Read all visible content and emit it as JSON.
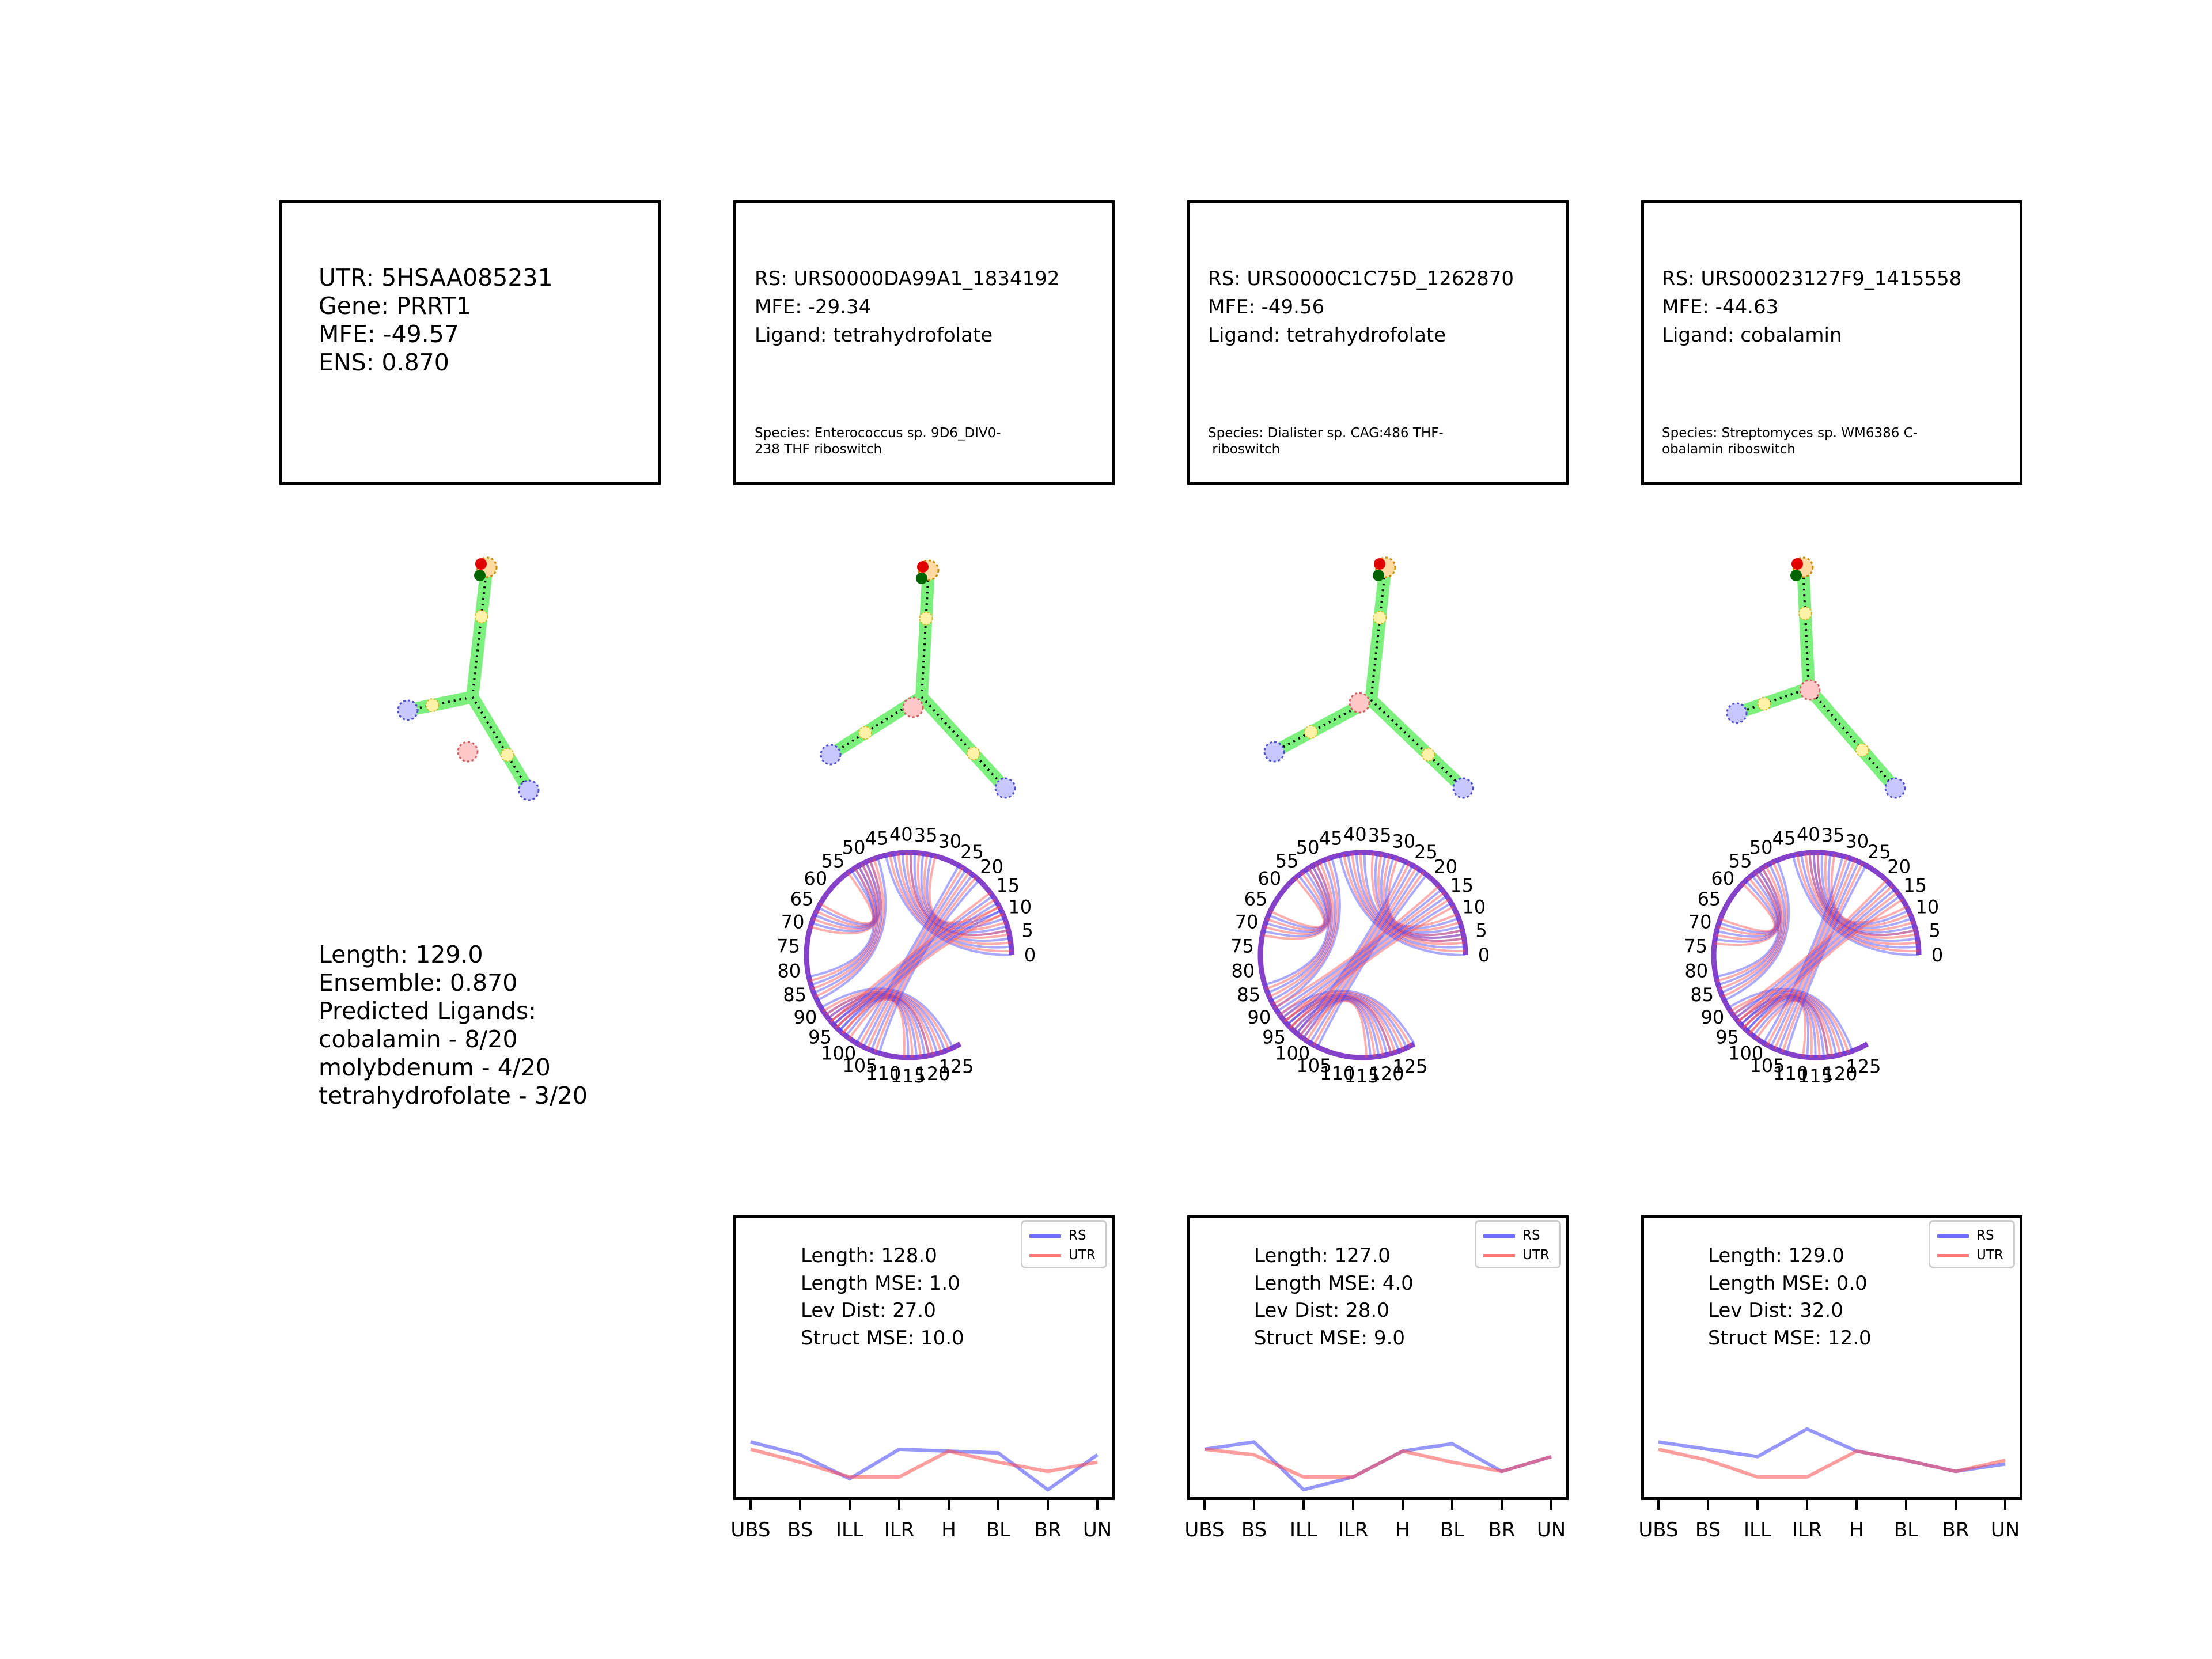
{
  "colors": {
    "rs": "#4040ff",
    "utr": "#ff4a4a",
    "stem": "#7cf07c",
    "hairpin": "#8080ff"
  },
  "utr_panel": {
    "utr": "UTR: 5HSAA085231",
    "gene": "Gene: PRRT1",
    "mfe": "MFE: -49.57",
    "ens": "ENS: 0.870"
  },
  "summary": {
    "length": "Length: 129.0",
    "ensemble": "Ensemble: 0.870",
    "predicted": "Predicted Ligands:",
    "ligands": [
      "cobalamin - 8/20",
      "molybdenum - 4/20",
      "tetrahydrofolate - 3/20"
    ]
  },
  "riboswitches": [
    {
      "rs": "RS: URS0000DA99A1_1834192",
      "mfe": "MFE: -29.34",
      "ligand": "Ligand: tetrahydrofolate",
      "species1": "Species: Enterococcus sp. 9D6_DIV0-",
      "species2": "238 THF riboswitch",
      "length": "Length: 128.0",
      "length_mse": "Length MSE: 1.0",
      "lev": "Lev Dist: 27.0",
      "struct": "Struct MSE: 10.0"
    },
    {
      "rs": "RS: URS0000C1C75D_1262870",
      "mfe": "MFE: -49.56",
      "ligand": "Ligand: tetrahydrofolate",
      "species1": "Species: Dialister sp. CAG:486 THF-",
      "species2": " riboswitch",
      "length": "Length: 127.0",
      "length_mse": "Length MSE: 4.0",
      "lev": "Lev Dist: 28.0",
      "struct": "Struct MSE: 9.0"
    },
    {
      "rs": "RS: URS00023127F9_1415558",
      "mfe": "MFE: -44.63",
      "ligand": "Ligand: cobalamin",
      "species1": "Species: Streptomyces sp. WM6386 C-",
      "species2": "obalamin riboswitch",
      "length": "Length: 129.0",
      "length_mse": "Length MSE: 0.0",
      "lev": "Lev Dist: 32.0",
      "struct": "Struct MSE: 12.0"
    }
  ],
  "legend": {
    "rs": "RS",
    "utr": "UTR"
  },
  "arc_ticks": [
    "0",
    "5",
    "10",
    "15",
    "20",
    "25",
    "30",
    "35",
    "40",
    "45",
    "50",
    "55",
    "60",
    "65",
    "70",
    "75",
    "80",
    "85",
    "90",
    "95",
    "100",
    "105",
    "110",
    "115",
    "120",
    "125"
  ],
  "chart_data": [
    {
      "type": "line",
      "categories": [
        "UBS",
        "BS",
        "ILL",
        "ILR",
        "H",
        "BL",
        "BR",
        "UN"
      ],
      "ylim": [
        0,
        10
      ],
      "series": [
        {
          "name": "RS",
          "values": [
            3.0,
            2.3,
            1.0,
            2.6,
            2.5,
            2.4,
            0.4,
            2.3
          ]
        },
        {
          "name": "UTR",
          "values": [
            2.6,
            1.9,
            1.1,
            1.1,
            2.5,
            1.9,
            1.4,
            1.9
          ]
        }
      ]
    },
    {
      "type": "line",
      "categories": [
        "UBS",
        "BS",
        "ILL",
        "ILR",
        "H",
        "BL",
        "BR",
        "UN"
      ],
      "ylim": [
        0,
        10
      ],
      "series": [
        {
          "name": "RS",
          "values": [
            2.6,
            3.0,
            0.4,
            1.1,
            2.5,
            2.9,
            1.4,
            2.2
          ]
        },
        {
          "name": "UTR",
          "values": [
            2.6,
            2.3,
            1.1,
            1.1,
            2.5,
            1.9,
            1.4,
            2.2
          ]
        }
      ]
    },
    {
      "type": "line",
      "categories": [
        "UBS",
        "BS",
        "ILL",
        "ILR",
        "H",
        "BL",
        "BR",
        "UN"
      ],
      "ylim": [
        0,
        10
      ],
      "series": [
        {
          "name": "RS",
          "values": [
            3.0,
            2.6,
            2.2,
            3.7,
            2.5,
            2.0,
            1.4,
            1.8
          ]
        },
        {
          "name": "UTR",
          "values": [
            2.6,
            2.0,
            1.1,
            1.1,
            2.5,
            2.0,
            1.4,
            2.0
          ]
        }
      ]
    }
  ]
}
